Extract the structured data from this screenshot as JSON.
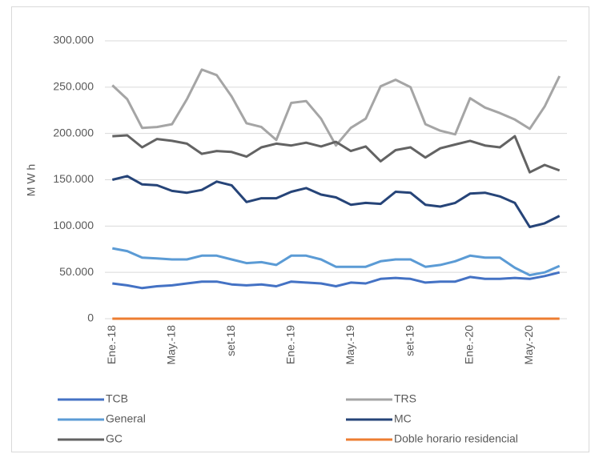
{
  "chart_data": {
    "type": "line",
    "y_label": "M W h",
    "categories": [
      "Ene.-18",
      null,
      null,
      null,
      "May.-18",
      null,
      null,
      null,
      "set-18",
      null,
      null,
      null,
      "Ene.-19",
      null,
      null,
      null,
      "May.-19",
      null,
      null,
      null,
      "set-19",
      null,
      null,
      null,
      "Ene.-20",
      null,
      null,
      null,
      "May.-20",
      null,
      null
    ],
    "ylim": [
      0,
      300000
    ],
    "yticks": [
      0,
      {
        "value": 50000,
        "label": "50.000"
      },
      {
        "value": 100000,
        "label": "100.000"
      },
      {
        "value": 150000,
        "label": "150.000"
      },
      {
        "value": 200000,
        "label": "200.000"
      },
      {
        "value": 250000,
        "label": "250.000"
      },
      {
        "value": 300000,
        "label": "300.000"
      }
    ],
    "grid": true,
    "legend": "bottom",
    "series": [
      {
        "name": "TCB",
        "color": "#4472c4",
        "values": [
          38000,
          36000,
          33000,
          35000,
          36000,
          38000,
          40000,
          40000,
          37000,
          36000,
          37000,
          35000,
          40000,
          39000,
          38000,
          35000,
          39000,
          38000,
          43000,
          44000,
          43000,
          39000,
          40000,
          40000,
          45000,
          43000,
          43000,
          44000,
          43000,
          46000,
          50000
        ]
      },
      {
        "name": "TRS",
        "color": "#a5a5a5",
        "values": [
          252000,
          237000,
          206000,
          207000,
          210000,
          237000,
          269000,
          263000,
          240000,
          211000,
          207000,
          193000,
          233000,
          235000,
          216000,
          187000,
          206000,
          216000,
          251000,
          258000,
          250000,
          210000,
          203000,
          199000,
          238000,
          228000,
          222000,
          215000,
          205000,
          229000,
          262000
        ]
      },
      {
        "name": "General",
        "color": "#5b9bd5",
        "values": [
          76000,
          73000,
          66000,
          65000,
          64000,
          64000,
          68000,
          68000,
          64000,
          60000,
          61000,
          58000,
          68000,
          68000,
          64000,
          56000,
          56000,
          56000,
          62000,
          64000,
          64000,
          56000,
          58000,
          62000,
          68000,
          66000,
          66000,
          55000,
          47000,
          50000,
          57000
        ]
      },
      {
        "name": "MC",
        "color": "#264478",
        "values": [
          150000,
          154000,
          145000,
          144000,
          138000,
          136000,
          139000,
          148000,
          144000,
          126000,
          130000,
          130000,
          137000,
          141000,
          134000,
          131000,
          123000,
          125000,
          124000,
          137000,
          136000,
          123000,
          121000,
          125000,
          135000,
          136000,
          132000,
          125000,
          99000,
          103000,
          111000
        ]
      },
      {
        "name": "GC",
        "color": "#636363",
        "values": [
          197000,
          198000,
          185000,
          194000,
          192000,
          189000,
          178000,
          181000,
          180000,
          175000,
          185000,
          189000,
          187000,
          190000,
          186000,
          191000,
          181000,
          186000,
          170000,
          182000,
          185000,
          174000,
          184000,
          188000,
          192000,
          187000,
          185000,
          197000,
          158000,
          166000,
          160000
        ]
      },
      {
        "name": "Doble horario residencial",
        "color": "#ed7d31",
        "values": [
          0,
          0,
          0,
          0,
          0,
          0,
          0,
          0,
          0,
          0,
          0,
          0,
          0,
          0,
          0,
          0,
          0,
          0,
          0,
          0,
          0,
          0,
          0,
          0,
          0,
          0,
          0,
          0,
          0,
          0,
          0
        ]
      }
    ]
  }
}
